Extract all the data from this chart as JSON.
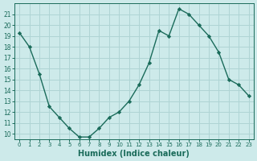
{
  "x": [
    0,
    1,
    2,
    3,
    4,
    5,
    6,
    7,
    8,
    9,
    10,
    11,
    12,
    13,
    14,
    15,
    16,
    17,
    18,
    19,
    20,
    21,
    22,
    23
  ],
  "y": [
    19.3,
    18.0,
    15.5,
    12.5,
    11.5,
    10.5,
    9.7,
    9.7,
    10.5,
    11.5,
    12.0,
    13.0,
    14.5,
    16.5,
    19.5,
    19.0,
    21.5,
    21.0,
    20.0,
    19.0,
    17.5,
    15.0,
    14.5,
    13.5
  ],
  "xlabel": "Humidex (Indice chaleur)",
  "ylim": [
    9.5,
    22
  ],
  "xlim": [
    -0.5,
    23.5
  ],
  "yticks": [
    10,
    11,
    12,
    13,
    14,
    15,
    16,
    17,
    18,
    19,
    20,
    21
  ],
  "xticks": [
    0,
    1,
    2,
    3,
    4,
    5,
    6,
    7,
    8,
    9,
    10,
    11,
    12,
    13,
    14,
    15,
    16,
    17,
    18,
    19,
    20,
    21,
    22,
    23
  ],
  "line_color": "#1a6b5a",
  "marker_color": "#1a6b5a",
  "bg_color": "#cdeaea",
  "grid_color": "#afd4d4",
  "tick_color": "#1a6b5a"
}
